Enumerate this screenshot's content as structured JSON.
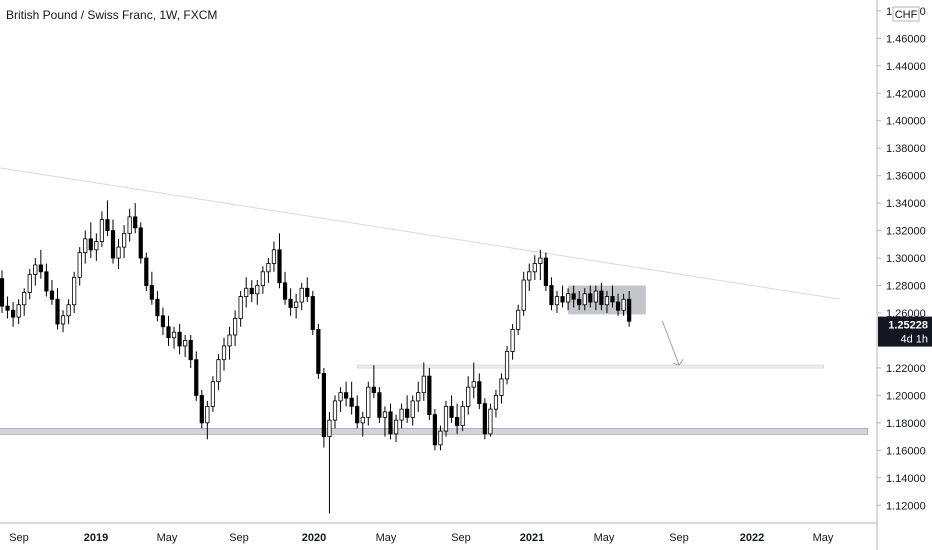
{
  "chart_data": {
    "type": "candlestick",
    "title": "British Pound / Swiss Franc, 1W, FXCM",
    "currency_label": "CHF",
    "ylim": [
      1.11,
      1.485
    ],
    "y_ticks": [
      "1.48000",
      "1.46000",
      "1.44000",
      "1.42000",
      "1.40000",
      "1.38000",
      "1.36000",
      "1.34000",
      "1.32000",
      "1.30000",
      "1.28000",
      "1.26000",
      "1.22000",
      "1.20000",
      "1.18000",
      "1.16000",
      "1.14000",
      "1.12000"
    ],
    "x_ticks": [
      {
        "label": "Sep",
        "bold": false
      },
      {
        "label": "2019",
        "bold": true
      },
      {
        "label": "May",
        "bold": false
      },
      {
        "label": "Sep",
        "bold": false
      },
      {
        "label": "2020",
        "bold": true
      },
      {
        "label": "May",
        "bold": false
      },
      {
        "label": "Sep",
        "bold": false
      },
      {
        "label": "2021",
        "bold": true
      },
      {
        "label": "May",
        "bold": false
      },
      {
        "label": "Sep",
        "bold": false
      },
      {
        "label": "2022",
        "bold": true
      },
      {
        "label": "May",
        "bold": false
      }
    ],
    "last_price": "1.25228",
    "last_price_value": 1.25228,
    "countdown": "4d 1h",
    "colors": {
      "up": "#ffffff",
      "down": "#000000",
      "wick": "#000000",
      "zone": "#d1d4dc",
      "box": "#9598a1",
      "trend": "#d9d9d9",
      "arrow": "#9aa0ab"
    },
    "candles": [
      [
        1.285,
        1.291,
        1.26,
        1.265
      ],
      [
        1.265,
        1.272,
        1.256,
        1.262
      ],
      [
        1.262,
        1.268,
        1.25,
        1.257
      ],
      [
        1.257,
        1.27,
        1.252,
        1.266
      ],
      [
        1.266,
        1.278,
        1.258,
        1.275
      ],
      [
        1.275,
        1.292,
        1.27,
        1.288
      ],
      [
        1.288,
        1.3,
        1.28,
        1.295
      ],
      [
        1.295,
        1.306,
        1.285,
        1.29
      ],
      [
        1.29,
        1.296,
        1.272,
        1.276
      ],
      [
        1.276,
        1.284,
        1.266,
        1.27
      ],
      [
        1.27,
        1.278,
        1.248,
        1.252
      ],
      [
        1.252,
        1.262,
        1.246,
        1.258
      ],
      [
        1.258,
        1.27,
        1.252,
        1.266
      ],
      [
        1.266,
        1.29,
        1.26,
        1.286
      ],
      [
        1.286,
        1.308,
        1.28,
        1.304
      ],
      [
        1.304,
        1.32,
        1.296,
        1.314
      ],
      [
        1.314,
        1.326,
        1.3,
        1.306
      ],
      [
        1.306,
        1.318,
        1.298,
        1.312
      ],
      [
        1.312,
        1.334,
        1.308,
        1.328
      ],
      [
        1.328,
        1.342,
        1.316,
        1.32
      ],
      [
        1.32,
        1.328,
        1.296,
        1.3
      ],
      [
        1.3,
        1.314,
        1.292,
        1.308
      ],
      [
        1.308,
        1.324,
        1.3,
        1.318
      ],
      [
        1.318,
        1.336,
        1.312,
        1.33
      ],
      [
        1.33,
        1.34,
        1.318,
        1.322
      ],
      [
        1.322,
        1.326,
        1.296,
        1.3
      ],
      [
        1.3,
        1.304,
        1.276,
        1.28
      ],
      [
        1.28,
        1.29,
        1.266,
        1.27
      ],
      [
        1.27,
        1.276,
        1.254,
        1.258
      ],
      [
        1.258,
        1.264,
        1.244,
        1.25
      ],
      [
        1.25,
        1.258,
        1.236,
        1.242
      ],
      [
        1.242,
        1.25,
        1.234,
        1.246
      ],
      [
        1.246,
        1.252,
        1.23,
        1.236
      ],
      [
        1.236,
        1.244,
        1.228,
        1.24
      ],
      [
        1.24,
        1.244,
        1.22,
        1.226
      ],
      [
        1.226,
        1.232,
        1.196,
        1.2
      ],
      [
        1.2,
        1.204,
        1.176,
        1.18
      ],
      [
        1.18,
        1.196,
        1.168,
        1.192
      ],
      [
        1.192,
        1.214,
        1.188,
        1.21
      ],
      [
        1.21,
        1.23,
        1.204,
        1.226
      ],
      [
        1.226,
        1.242,
        1.218,
        1.236
      ],
      [
        1.236,
        1.25,
        1.226,
        1.244
      ],
      [
        1.244,
        1.262,
        1.236,
        1.256
      ],
      [
        1.256,
        1.276,
        1.25,
        1.272
      ],
      [
        1.272,
        1.286,
        1.264,
        1.278
      ],
      [
        1.278,
        1.284,
        1.268,
        1.274
      ],
      [
        1.274,
        1.284,
        1.266,
        1.28
      ],
      [
        1.28,
        1.294,
        1.274,
        1.29
      ],
      [
        1.29,
        1.3,
        1.282,
        1.296
      ],
      [
        1.296,
        1.312,
        1.29,
        1.306
      ],
      [
        1.306,
        1.318,
        1.278,
        1.282
      ],
      [
        1.282,
        1.29,
        1.266,
        1.27
      ],
      [
        1.27,
        1.278,
        1.258,
        1.264
      ],
      [
        1.264,
        1.274,
        1.256,
        1.268
      ],
      [
        1.268,
        1.282,
        1.262,
        1.278
      ],
      [
        1.278,
        1.286,
        1.268,
        1.272
      ],
      [
        1.272,
        1.276,
        1.244,
        1.248
      ],
      [
        1.248,
        1.252,
        1.212,
        1.216
      ],
      [
        1.216,
        1.22,
        1.162,
        1.17
      ],
      [
        1.17,
        1.188,
        1.114,
        1.182
      ],
      [
        1.182,
        1.2,
        1.176,
        1.196
      ],
      [
        1.196,
        1.206,
        1.188,
        1.202
      ],
      [
        1.202,
        1.21,
        1.192,
        1.198
      ],
      [
        1.198,
        1.21,
        1.186,
        1.192
      ],
      [
        1.192,
        1.2,
        1.176,
        1.18
      ],
      [
        1.18,
        1.188,
        1.17,
        1.184
      ],
      [
        1.184,
        1.21,
        1.178,
        1.206
      ],
      [
        1.206,
        1.222,
        1.198,
        1.202
      ],
      [
        1.202,
        1.206,
        1.18,
        1.184
      ],
      [
        1.184,
        1.192,
        1.17,
        1.188
      ],
      [
        1.188,
        1.194,
        1.168,
        1.172
      ],
      [
        1.172,
        1.186,
        1.166,
        1.182
      ],
      [
        1.182,
        1.194,
        1.176,
        1.19
      ],
      [
        1.19,
        1.2,
        1.18,
        1.184
      ],
      [
        1.184,
        1.2,
        1.178,
        1.196
      ],
      [
        1.196,
        1.21,
        1.188,
        1.202
      ],
      [
        1.202,
        1.224,
        1.196,
        1.214
      ],
      [
        1.214,
        1.22,
        1.182,
        1.186
      ],
      [
        1.186,
        1.19,
        1.16,
        1.164
      ],
      [
        1.164,
        1.178,
        1.16,
        1.174
      ],
      [
        1.174,
        1.196,
        1.17,
        1.192
      ],
      [
        1.192,
        1.2,
        1.18,
        1.184
      ],
      [
        1.184,
        1.194,
        1.172,
        1.178
      ],
      [
        1.178,
        1.196,
        1.174,
        1.192
      ],
      [
        1.192,
        1.214,
        1.186,
        1.206
      ],
      [
        1.206,
        1.224,
        1.198,
        1.21
      ],
      [
        1.21,
        1.216,
        1.19,
        1.194
      ],
      [
        1.194,
        1.198,
        1.168,
        1.172
      ],
      [
        1.172,
        1.194,
        1.17,
        1.19
      ],
      [
        1.19,
        1.204,
        1.184,
        1.2
      ],
      [
        1.2,
        1.216,
        1.194,
        1.212
      ],
      [
        1.212,
        1.236,
        1.208,
        1.232
      ],
      [
        1.232,
        1.252,
        1.226,
        1.248
      ],
      [
        1.248,
        1.266,
        1.244,
        1.262
      ],
      [
        1.262,
        1.29,
        1.258,
        1.284
      ],
      [
        1.284,
        1.296,
        1.276,
        1.29
      ],
      [
        1.29,
        1.302,
        1.284,
        1.296
      ],
      [
        1.296,
        1.306,
        1.284,
        1.3
      ],
      [
        1.3,
        1.304,
        1.276,
        1.28
      ],
      [
        1.28,
        1.286,
        1.262,
        1.266
      ],
      [
        1.266,
        1.276,
        1.26,
        1.272
      ],
      [
        1.272,
        1.28,
        1.264,
        1.268
      ],
      [
        1.268,
        1.278,
        1.262,
        1.274
      ],
      [
        1.274,
        1.28,
        1.264,
        1.27
      ],
      [
        1.27,
        1.276,
        1.262,
        1.266
      ],
      [
        1.266,
        1.278,
        1.262,
        1.274
      ],
      [
        1.274,
        1.28,
        1.264,
        1.268
      ],
      [
        1.268,
        1.28,
        1.262,
        1.276
      ],
      [
        1.276,
        1.282,
        1.262,
        1.266
      ],
      [
        1.266,
        1.276,
        1.26,
        1.272
      ],
      [
        1.272,
        1.28,
        1.264,
        1.268
      ],
      [
        1.268,
        1.274,
        1.258,
        1.262
      ],
      [
        1.262,
        1.274,
        1.258,
        1.27
      ],
      [
        1.27,
        1.276,
        1.25,
        1.254
      ]
    ],
    "annotations": {
      "trendline": {
        "from": [
          -4,
          1.368
        ],
        "to": [
          151,
          1.27
        ]
      },
      "resistance_box": {
        "from_index": 102,
        "to_index": 116,
        "low": 1.259,
        "high": 1.28
      },
      "dashed_target_line": {
        "from_index": 64,
        "to_index": 148,
        "value": 1.221
      },
      "support_zone": {
        "from_index": -3,
        "to_index": 156,
        "low": 1.172,
        "high": 1.176
      },
      "arrow": {
        "from": [
          119,
          1.254
        ],
        "to": [
          122,
          1.222
        ]
      }
    }
  }
}
